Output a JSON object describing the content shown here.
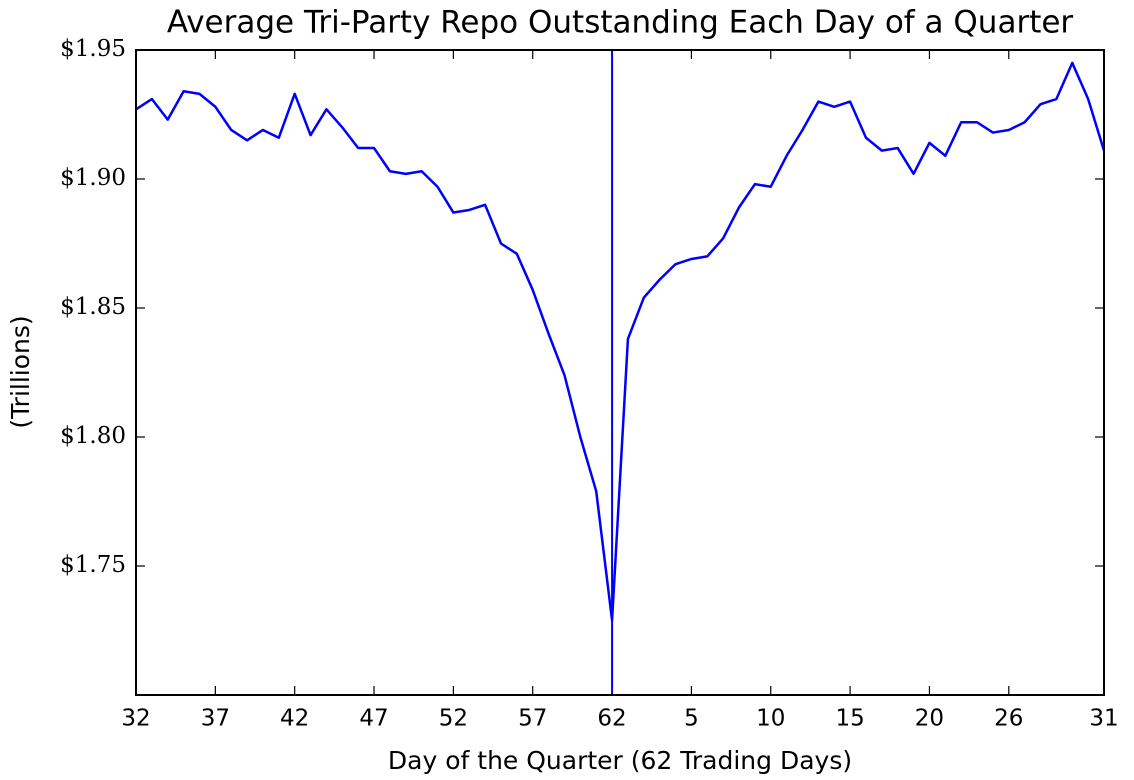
{
  "chart_data": {
    "type": "line",
    "title": "Average Tri-Party Repo Outstanding Each Day of a Quarter",
    "x_label": "Day of the Quarter (62 Trading Days)",
    "y_label": "(Trillions)",
    "categories": [
      "32",
      null,
      null,
      null,
      null,
      "37",
      null,
      null,
      null,
      null,
      "42",
      null,
      null,
      null,
      null,
      "47",
      null,
      null,
      null,
      null,
      "52",
      null,
      null,
      null,
      null,
      "57",
      null,
      null,
      null,
      null,
      "62",
      null,
      null,
      null,
      null,
      "5",
      null,
      null,
      null,
      null,
      "10",
      null,
      null,
      null,
      null,
      "15",
      null,
      null,
      null,
      null,
      "20",
      null,
      null,
      null,
      null,
      "26",
      null,
      null,
      null,
      null,
      null,
      "31"
    ],
    "series": [
      {
        "name": "Tri-Party Repo",
        "color": "#0000ff",
        "values": [
          1.927,
          1.931,
          1.923,
          1.934,
          1.933,
          1.928,
          1.919,
          1.915,
          1.919,
          1.916,
          1.933,
          1.917,
          1.927,
          1.92,
          1.912,
          1.912,
          1.903,
          1.902,
          1.903,
          1.897,
          1.887,
          1.888,
          1.89,
          1.875,
          1.871,
          1.857,
          1.84,
          1.824,
          1.8,
          1.779,
          1.729,
          1.838,
          1.854,
          1.861,
          1.867,
          1.869,
          1.87,
          1.877,
          1.889,
          1.898,
          1.897,
          1.909,
          1.919,
          1.93,
          1.928,
          1.93,
          1.916,
          1.911,
          1.912,
          1.902,
          1.914,
          1.909,
          1.922,
          1.922,
          1.918,
          1.919,
          1.922,
          1.929,
          1.931,
          1.945,
          1.931,
          1.911
        ]
      }
    ],
    "vertical_line_index": 30,
    "ylim": [
      1.7,
      1.95
    ],
    "yticks": [
      {
        "value": 1.75,
        "label": "$1.75"
      },
      {
        "value": 1.8,
        "label": "$1.80"
      },
      {
        "value": 1.85,
        "label": "$1.85"
      },
      {
        "value": 1.9,
        "label": "$1.90"
      },
      {
        "value": 1.95,
        "label": "$1.95"
      }
    ],
    "grid": false
  }
}
